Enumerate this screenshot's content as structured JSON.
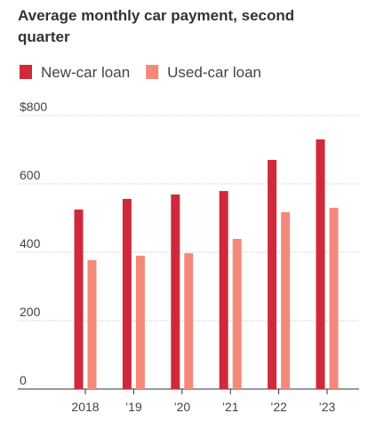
{
  "chart_data": {
    "type": "bar",
    "title": "Average monthly car payment, second quarter",
    "categories": [
      "2018",
      "’19",
      "’20",
      "’21",
      "’22",
      "’23"
    ],
    "series": [
      {
        "name": "New-car loan",
        "color": "#d0293b",
        "values": [
          525,
          556,
          569,
          579,
          670,
          730
        ]
      },
      {
        "name": "Used-car loan",
        "color": "#f4897a",
        "values": [
          377,
          390,
          397,
          439,
          517,
          530
        ]
      }
    ],
    "ylim": [
      0,
      800
    ],
    "yticks": [
      0,
      200,
      400,
      600,
      {
        "value": 800,
        "label": "$800"
      }
    ],
    "grid": true
  }
}
